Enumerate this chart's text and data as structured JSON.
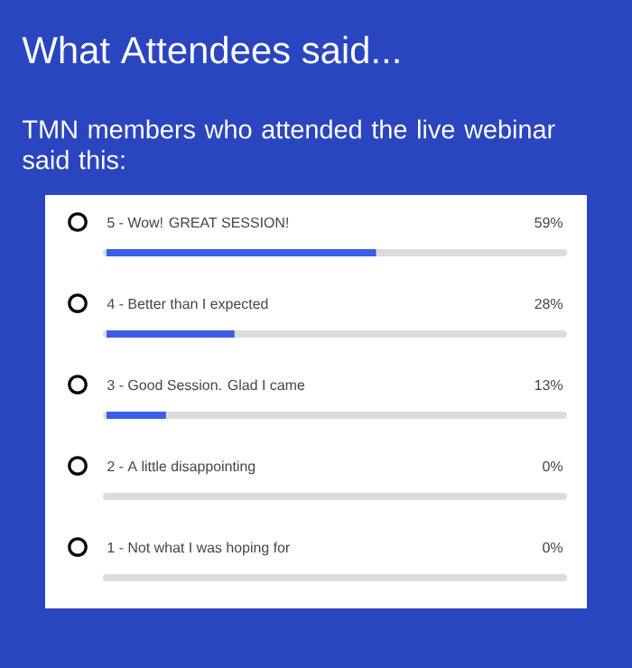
{
  "chart_data": {
    "type": "bar",
    "orientation": "horizontal",
    "title": "What Attendees said...",
    "subtitle": "TMN members who attended the live webinar said this:",
    "categories": [
      "5 - Wow! GREAT SESSION!",
      "4 - Better than I expected",
      "3 - Good Session. Glad I came",
      "2 - A little disappointing",
      "1 - Not what I was hoping for"
    ],
    "values": [
      59,
      28,
      13,
      0,
      0
    ],
    "value_labels": [
      "59%",
      "28%",
      "13%",
      "0%",
      "0%"
    ],
    "color": "#3a5ee8",
    "xlim": [
      0,
      100
    ]
  }
}
